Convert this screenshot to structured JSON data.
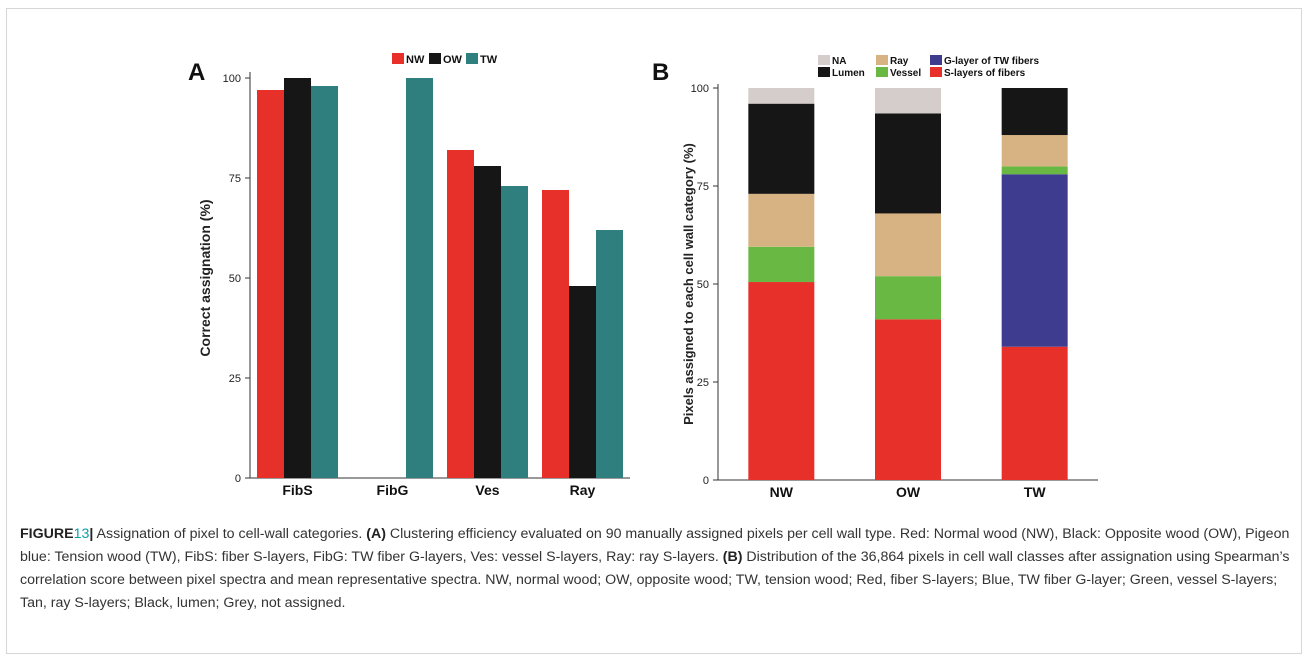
{
  "colors": {
    "NW": "#e8302b",
    "OW": "#161616",
    "TW": "#2f7f7f",
    "NA": "#d4cdcc",
    "Ray": "#d7b383",
    "G-layer of TW fibers": "#3d3c8e",
    "Lumen": "#161616",
    "Vessel": "#6ab844",
    "S-layers of fibers": "#e8302b",
    "axis": "#333333"
  },
  "chart_data": [
    {
      "panel": "A",
      "type": "bar",
      "ylabel": "Correct assignation (%)",
      "xlabel": "",
      "ylim": [
        0,
        100
      ],
      "yticks": [
        "0",
        "25",
        "50",
        "75",
        "100"
      ],
      "categories": [
        "FibS",
        "FibG",
        "Ves",
        "Ray"
      ],
      "series": [
        {
          "name": "NW",
          "values": [
            97,
            0,
            82,
            72
          ]
        },
        {
          "name": "OW",
          "values": [
            100,
            0,
            78,
            48
          ]
        },
        {
          "name": "TW",
          "values": [
            98,
            100,
            73,
            62
          ]
        }
      ],
      "legend": [
        "NW",
        "OW",
        "TW"
      ],
      "legend_position": "top-right",
      "grid": false
    },
    {
      "panel": "B",
      "type": "bar",
      "stacked": true,
      "ylabel": "Pixels assigned to each cell wall category (%)",
      "xlabel": "",
      "ylim": [
        0,
        100
      ],
      "yticks": [
        "0",
        "25",
        "50",
        "75",
        "100"
      ],
      "categories": [
        "NW",
        "OW",
        "TW"
      ],
      "series": [
        {
          "name": "S-layers of fibers",
          "values": [
            50.5,
            41,
            34
          ]
        },
        {
          "name": "G-layer of TW fibers",
          "values": [
            0,
            0,
            44
          ]
        },
        {
          "name": "Vessel",
          "values": [
            9,
            11,
            2
          ]
        },
        {
          "name": "Ray",
          "values": [
            13.5,
            16,
            8
          ]
        },
        {
          "name": "Lumen",
          "values": [
            23,
            25.5,
            12
          ]
        },
        {
          "name": "NA",
          "values": [
            4,
            6.5,
            0
          ]
        }
      ],
      "legend": [
        "NA",
        "Ray",
        "G-layer of TW fibers",
        "Lumen",
        "Vessel",
        "S-layers of fibers"
      ],
      "legend_position": "top",
      "grid": false
    }
  ],
  "panel_labels": {
    "a": "A",
    "b": "B"
  },
  "caption": {
    "figure": "FIGURE",
    "number": "13",
    "separator": "|",
    "intro": " Assignation of pixel to cell-wall categories. ",
    "a_label": "(A)",
    "a_text": " Clustering efficiency evaluated on 90 manually assigned pixels per cell wall type. Red: Normal wood (NW), Black: Opposite wood (OW), Pigeon blue: Tension wood (TW), FibS: fiber S-layers, FibG: TW fiber G-layers, Ves: vessel S-layers, Ray: ray S-layers. ",
    "b_label": "(B)",
    "b_text": " Distribution of the 36,864 pixels in cell wall classes after assignation using Spearman’s correlation score between pixel spectra and mean representative spectra. NW, normal wood; OW, opposite wood; TW, tension wood; Red, fiber S-layers; Blue, TW fiber G-layer; Green, vessel S-layers; Tan, ray S-layers; Black, lumen; Grey, not assigned."
  }
}
